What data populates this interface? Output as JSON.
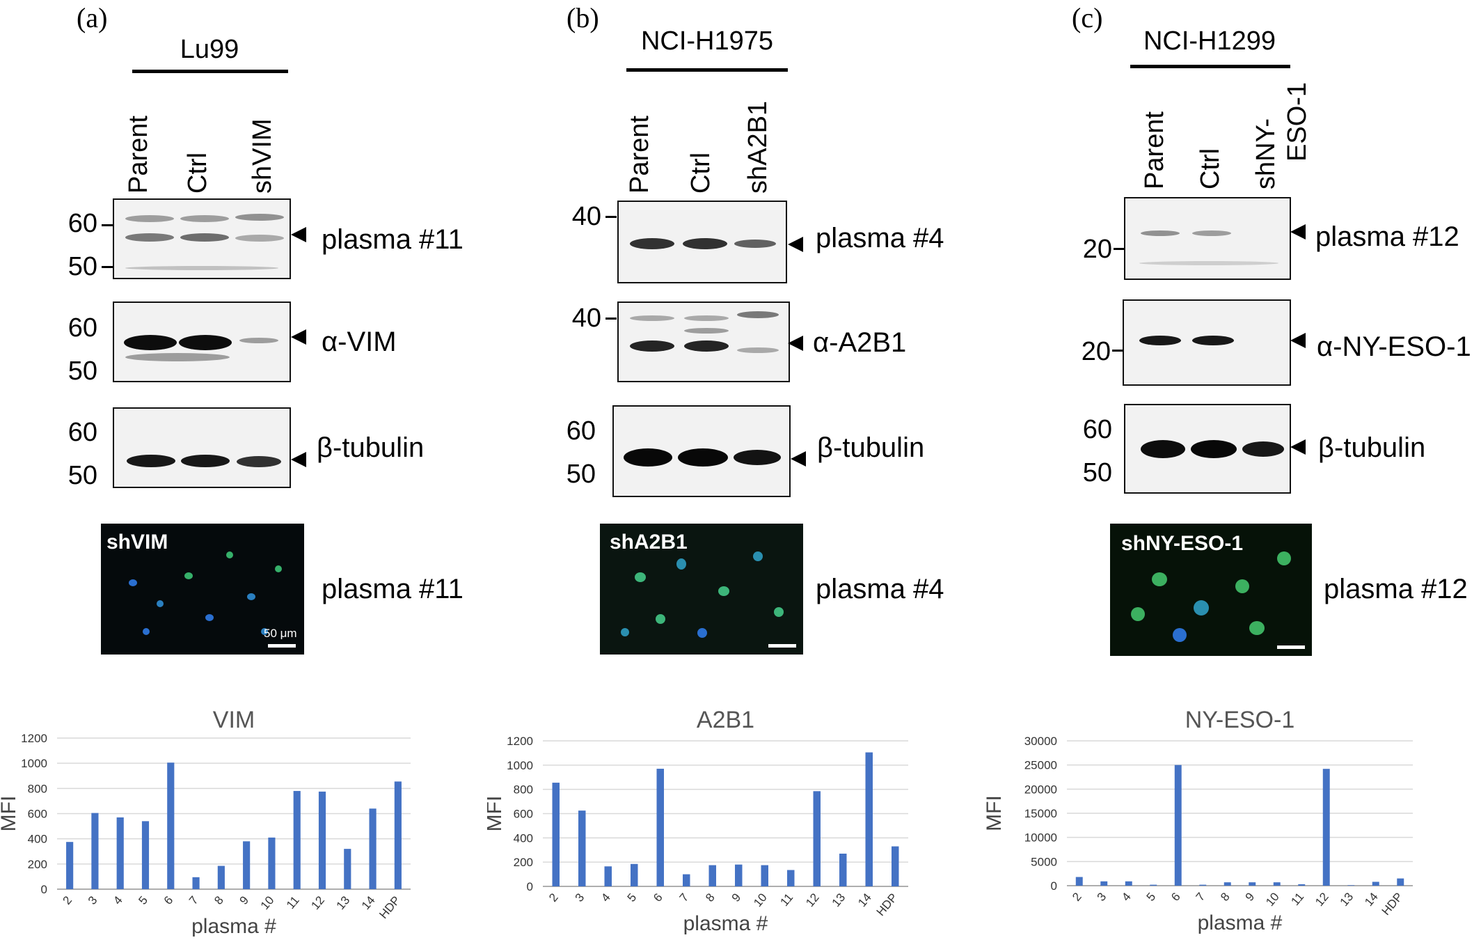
{
  "panels": [
    {
      "letter": "(a)",
      "cell_line": "Lu99",
      "lanes": [
        "Parent",
        "Ctrl",
        "shVIM"
      ],
      "blots": [
        {
          "label": "plasma #11",
          "markers": [
            "60",
            "50"
          ]
        },
        {
          "label": "α-VIM",
          "markers": [
            "60",
            "50"
          ]
        },
        {
          "label": "β-tubulin",
          "markers": [
            "60",
            "50"
          ]
        }
      ],
      "micro": {
        "label": "shVIM",
        "scale_text": "50 μm",
        "plasma_label": "plasma #11"
      }
    },
    {
      "letter": "(b)",
      "cell_line": "NCI-H1975",
      "lanes": [
        "Parent",
        "Ctrl",
        "shA2B1"
      ],
      "blots": [
        {
          "label": "plasma #4",
          "markers": [
            "40"
          ]
        },
        {
          "label": "α-A2B1",
          "markers": [
            "40"
          ]
        },
        {
          "label": "β-tubulin",
          "markers": [
            "60",
            "50"
          ]
        }
      ],
      "micro": {
        "label": "shA2B1",
        "scale_text": "",
        "plasma_label": "plasma #4"
      }
    },
    {
      "letter": "(c)",
      "cell_line": "NCI-H1299",
      "lanes": [
        "Parent",
        "Ctrl",
        "shNY-",
        "ESO-1"
      ],
      "blots": [
        {
          "label": "plasma #12",
          "markers": [
            "20"
          ]
        },
        {
          "label": "α-NY-ESO-1",
          "markers": [
            "20"
          ]
        },
        {
          "label": "β-tubulin",
          "markers": [
            "60",
            "50"
          ]
        }
      ],
      "micro": {
        "label": "shNY-ESO-1",
        "scale_text": "",
        "plasma_label": "plasma #12"
      }
    }
  ],
  "chart_data": [
    {
      "type": "bar",
      "title": "VIM",
      "xlabel": "plasma #",
      "ylabel": "MFI",
      "categories": [
        "2",
        "3",
        "4",
        "5",
        "6",
        "7",
        "8",
        "9",
        "10",
        "11",
        "12",
        "13",
        "14",
        "HDP"
      ],
      "values": [
        375,
        605,
        570,
        540,
        1005,
        95,
        185,
        380,
        410,
        780,
        775,
        320,
        640,
        855
      ],
      "ylim": [
        0,
        1200
      ],
      "yticks": [
        0,
        200,
        400,
        600,
        800,
        1000,
        1200
      ],
      "color": "#4472c4",
      "grid": true
    },
    {
      "type": "bar",
      "title": "A2B1",
      "xlabel": "plasma #",
      "ylabel": "MFI",
      "categories": [
        "2",
        "3",
        "4",
        "5",
        "6",
        "7",
        "8",
        "9",
        "10",
        "11",
        "12",
        "13",
        "14",
        "HDP"
      ],
      "values": [
        855,
        625,
        165,
        185,
        970,
        100,
        175,
        180,
        175,
        135,
        785,
        270,
        1105,
        330
      ],
      "ylim": [
        0,
        1200
      ],
      "yticks": [
        0,
        200,
        400,
        600,
        800,
        1000,
        1200
      ],
      "color": "#4472c4",
      "grid": true
    },
    {
      "type": "bar",
      "title": "NY-ESO-1",
      "xlabel": "plasma #",
      "ylabel": "MFI",
      "categories": [
        "2",
        "3",
        "4",
        "5",
        "6",
        "7",
        "8",
        "9",
        "10",
        "11",
        "12",
        "13",
        "14",
        "HDP"
      ],
      "values": [
        1800,
        900,
        900,
        200,
        25000,
        200,
        700,
        700,
        700,
        300,
        24200,
        100,
        800,
        1500
      ],
      "ylim": [
        0,
        30000
      ],
      "yticks": [
        0,
        5000,
        10000,
        15000,
        20000,
        25000,
        30000
      ],
      "color": "#4472c4",
      "grid": true
    }
  ]
}
